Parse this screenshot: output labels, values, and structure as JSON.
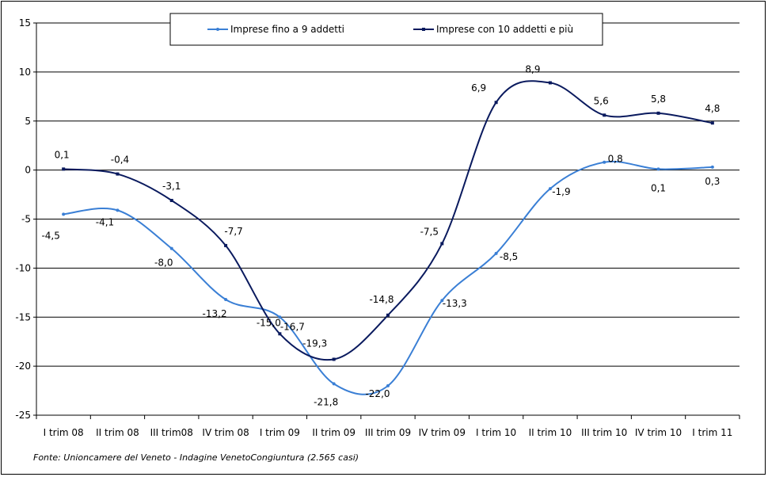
{
  "chart_data": {
    "type": "line",
    "categories": [
      "I trim 08",
      "II trim 08",
      "III trim08",
      "IV trim 08",
      "I trim 09",
      "II trim 09",
      "III trim 09",
      "IV trim 09",
      "I trim 10",
      "II trim 10",
      "III trim 10",
      "IV trim 10",
      "I trim 11"
    ],
    "series": [
      {
        "name": "Imprese fino a 9 addetti",
        "color": "#3a7fd5",
        "values": [
          -4.5,
          -4.1,
          -8.0,
          -13.2,
          -15.0,
          -21.8,
          -22.0,
          -13.3,
          -8.5,
          -1.9,
          0.8,
          0.1,
          0.3
        ],
        "labels": [
          "-4,5",
          "-4,1",
          "-8,0",
          "-13,2",
          "-15,0",
          "-21,8",
          "-22,0",
          "-13,3",
          "-8,5",
          "-1,9",
          "0,8",
          "0,1",
          "0,3"
        ]
      },
      {
        "name": "Imprese con 10 addetti e più",
        "color": "#0a1a5e",
        "values": [
          0.1,
          -0.4,
          -3.1,
          -7.7,
          -16.7,
          -19.3,
          -14.8,
          -7.5,
          6.9,
          8.9,
          5.6,
          5.8,
          4.8
        ],
        "labels": [
          "0,1",
          "-0,4",
          "-3,1",
          "-7,7",
          "-16,7",
          "-19,3",
          "-14,8",
          "-7,5",
          "6,9",
          "8,9",
          "5,6",
          "5,8",
          "4,8"
        ]
      }
    ],
    "yticks": [
      "15",
      "10",
      "5",
      "0",
      "-5",
      "-10",
      "-15",
      "-20",
      "-25"
    ],
    "ylim": [
      -25,
      15
    ],
    "grid": true,
    "legend_position": "top-center"
  },
  "source_note": "Fonte: Unioncamere del Veneto - Indagine VenetoCongiuntura (2.565 casi)"
}
